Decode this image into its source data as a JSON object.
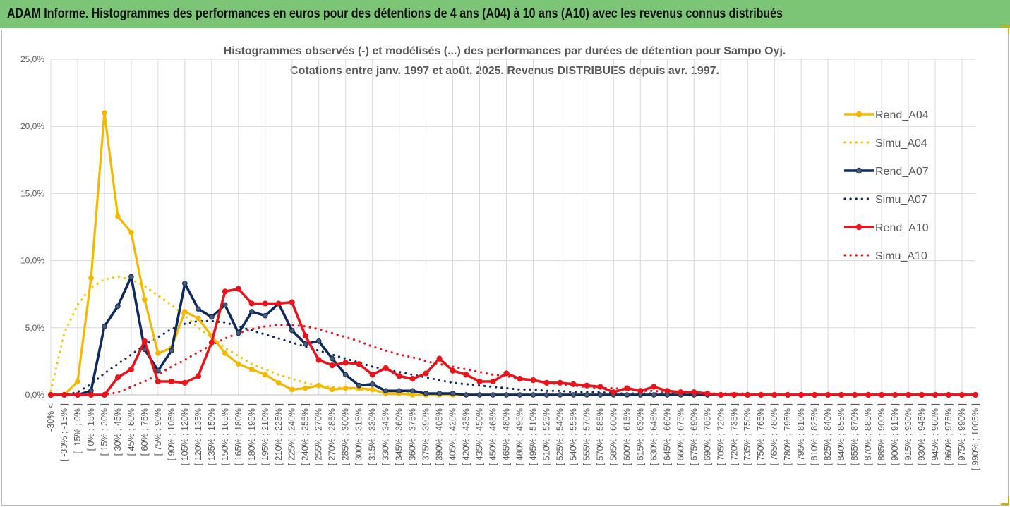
{
  "header": {
    "title": "ADAM Informe. Histogrammes des performances en euros pour des détentions de 4 ans (A04) à 10 ans (A10) avec les revenus connus distribués"
  },
  "chart_data": {
    "type": "line",
    "title": "Histogrammes observés (-) et modélisés (...) des performances par durées de détention pour Sampo Oyj.",
    "subtitle": "Cotations entre janv. 1997 et août. 2025. Revenus DISTRIBUES depuis avr. 1997.",
    "ylim": [
      0,
      25
    ],
    "y_ticks": [
      "0,0%",
      "5,0%",
      "10,0%",
      "15,0%",
      "20,0%",
      "25,0%"
    ],
    "grid": true,
    "legend_position": "right",
    "categories": [
      "-30% <",
      "[ -30% ; -15% ]",
      "[ -15% ; 0% ]",
      "[ 0% ; 15% ]",
      "[ 15% ; 30% ]",
      "[ 30% ; 45% ]",
      "[ 45% ; 60% ]",
      "[ 60% ; 75% ]",
      "[ 75% ; 90% ]",
      "[ 90% ; 105% ]",
      "[ 105% ; 120% ]",
      "[ 120% ; 135% ]",
      "[ 135% ; 150% ]",
      "[ 150% ; 165% ]",
      "[ 165% ; 180% ]",
      "[ 180% ; 195% ]",
      "[ 195% ; 210% ]",
      "[ 210% ; 225% ]",
      "[ 225% ; 240% ]",
      "[ 240% ; 255% ]",
      "[ 255% ; 270% ]",
      "[ 270% ; 285% ]",
      "[ 285% ; 300% ]",
      "[ 300% ; 315% ]",
      "[ 315% ; 330% ]",
      "[ 330% ; 345% ]",
      "[ 345% ; 360% ]",
      "[ 360% ; 375% ]",
      "[ 375% ; 390% ]",
      "[ 390% ; 405% ]",
      "[ 405% ; 420% ]",
      "[ 420% ; 435% ]",
      "[ 435% ; 450% ]",
      "[ 450% ; 465% ]",
      "[ 465% ; 480% ]",
      "[ 480% ; 495% ]",
      "[ 495% ; 510% ]",
      "[ 510% ; 525% ]",
      "[ 525% ; 540% ]",
      "[ 540% ; 555% ]",
      "[ 555% ; 570% ]",
      "[ 570% ; 585% ]",
      "[ 585% ; 600% ]",
      "[ 600% ; 615% ]",
      "[ 615% ; 630% ]",
      "[ 630% ; 645% ]",
      "[ 645% ; 660% ]",
      "[ 660% ; 675% ]",
      "[ 675% ; 690% ]",
      "[ 690% ; 705% ]",
      "[ 705% ; 720% ]",
      "[ 720% ; 735% ]",
      "[ 735% ; 750% ]",
      "[ 750% ; 765% ]",
      "[ 765% ; 780% ]",
      "[ 780% ; 795% ]",
      "[ 795% ; 810% ]",
      "[ 810% ; 825% ]",
      "[ 825% ; 840% ]",
      "[ 840% ; 855% ]",
      "[ 855% ; 870% ]",
      "[ 870% ; 885% ]",
      "[ 885% ; 900% ]",
      "[ 900% ; 915% ]",
      "[ 915% ; 930% ]",
      "[ 930% ; 945% ]",
      "[ 945% ; 960% ]",
      "[ 960% ; 975% ]",
      "[ 975% ; 990% ]",
      "[ 990% ; 1005% ]"
    ],
    "series": [
      {
        "name": "Rend_A04",
        "style": "solid",
        "color": "#f5b800",
        "values": [
          0,
          0,
          1.0,
          8.7,
          21.0,
          13.3,
          12.1,
          7.1,
          3.1,
          3.5,
          6.2,
          5.7,
          4.4,
          3.1,
          2.3,
          1.9,
          1.5,
          0.9,
          0.4,
          0.5,
          0.7,
          0.4,
          0.5,
          0.5,
          0.4,
          0.1,
          0.1,
          0,
          0,
          0,
          0,
          0,
          0,
          0,
          0,
          0,
          0,
          0,
          0,
          0,
          0,
          0,
          0,
          0,
          0,
          0,
          0,
          0,
          0,
          0,
          0,
          0,
          0,
          0,
          0,
          0,
          0,
          0,
          0,
          0,
          0,
          0,
          0,
          0,
          0,
          0,
          0,
          0,
          0,
          0
        ]
      },
      {
        "name": "Simu_A04",
        "style": "dotted",
        "color": "#f5c400",
        "values": [
          0.3,
          4.6,
          6.7,
          8.0,
          8.6,
          8.8,
          8.6,
          8.1,
          7.4,
          6.7,
          5.9,
          5.0,
          4.3,
          3.5,
          2.9,
          2.3,
          1.9,
          1.5,
          1.2,
          0.9,
          0.7,
          0.6,
          0.5,
          0.4,
          0.3,
          0.2,
          0.2,
          0.1,
          0.1,
          0.1,
          0.1,
          0,
          0,
          0,
          0,
          0,
          0,
          0,
          0,
          0,
          0,
          0,
          0,
          0,
          0,
          0,
          0,
          0,
          0,
          0,
          0,
          0,
          0,
          0,
          0,
          0,
          0,
          0,
          0,
          0,
          0,
          0,
          0,
          0,
          0,
          0,
          0,
          0,
          0,
          0
        ]
      },
      {
        "name": "Rend_A07",
        "style": "solid",
        "color": "#0f2a5c",
        "values": [
          0,
          0,
          0,
          0.3,
          5.1,
          6.6,
          8.8,
          3.4,
          1.8,
          3.3,
          8.3,
          6.4,
          5.8,
          6.7,
          4.6,
          6.2,
          5.9,
          6.8,
          4.8,
          3.8,
          4.0,
          2.7,
          1.5,
          0.7,
          0.8,
          0.3,
          0.3,
          0.3,
          0.1,
          0.1,
          0.1,
          0,
          0,
          0,
          0,
          0,
          0,
          0,
          0,
          0,
          0,
          0,
          0,
          0,
          0,
          0,
          0,
          0,
          0,
          0,
          0,
          0,
          0,
          0,
          0,
          0,
          0,
          0,
          0,
          0,
          0,
          0,
          0,
          0,
          0,
          0,
          0,
          0,
          0,
          0
        ]
      },
      {
        "name": "Simu_A07",
        "style": "dotted",
        "color": "#0f2a5c",
        "values": [
          0,
          0,
          0.2,
          0.8,
          1.6,
          2.3,
          3.0,
          3.7,
          4.3,
          4.9,
          5.3,
          5.5,
          5.5,
          5.4,
          5.1,
          4.8,
          4.5,
          4.2,
          3.9,
          3.6,
          3.3,
          3.0,
          2.7,
          2.4,
          2.1,
          1.9,
          1.7,
          1.5,
          1.3,
          1.1,
          0.9,
          0.8,
          0.7,
          0.6,
          0.5,
          0.4,
          0.4,
          0.3,
          0.3,
          0.2,
          0.2,
          0.2,
          0.1,
          0.1,
          0.1,
          0.1,
          0.1,
          0.1,
          0.1,
          0.1,
          0,
          0,
          0,
          0,
          0,
          0,
          0,
          0,
          0,
          0,
          0,
          0,
          0,
          0,
          0,
          0,
          0,
          0,
          0,
          0
        ]
      },
      {
        "name": "Rend_A10",
        "style": "solid",
        "color": "#e8141c",
        "values": [
          0,
          0,
          0,
          0,
          0,
          1.3,
          1.9,
          4.0,
          1.0,
          1.0,
          0.9,
          1.4,
          3.9,
          7.7,
          7.9,
          6.8,
          6.8,
          6.8,
          6.9,
          4.4,
          2.6,
          2.2,
          2.4,
          2.3,
          1.5,
          2.0,
          1.4,
          1.2,
          1.6,
          2.7,
          1.8,
          1.5,
          1.0,
          1.0,
          1.6,
          1.2,
          1.1,
          0.9,
          0.9,
          0.8,
          0.7,
          0.6,
          0.2,
          0.5,
          0.3,
          0.6,
          0.3,
          0.2,
          0.2,
          0.1,
          0,
          0,
          0,
          0,
          0,
          0,
          0,
          0,
          0,
          0,
          0,
          0,
          0,
          0,
          0,
          0,
          0,
          0,
          0,
          0
        ]
      },
      {
        "name": "Simu_A10",
        "style": "dotted",
        "color": "#e8141c",
        "values": [
          0,
          0,
          0,
          0,
          0,
          0.2,
          0.6,
          1.0,
          1.5,
          2.1,
          2.6,
          3.2,
          3.7,
          4.2,
          4.6,
          4.9,
          5.1,
          5.2,
          5.2,
          5.1,
          4.9,
          4.6,
          4.3,
          4.0,
          3.6,
          3.3,
          3.0,
          2.8,
          2.5,
          2.3,
          2.1,
          1.9,
          1.7,
          1.5,
          1.4,
          1.2,
          1.1,
          0.9,
          0.8,
          0.7,
          0.6,
          0.5,
          0.5,
          0.4,
          0.3,
          0.3,
          0.2,
          0.2,
          0.2,
          0.1,
          0.1,
          0.1,
          0.1,
          0,
          0,
          0,
          0,
          0,
          0,
          0,
          0,
          0,
          0,
          0,
          0,
          0,
          0,
          0,
          0,
          0
        ]
      }
    ]
  }
}
